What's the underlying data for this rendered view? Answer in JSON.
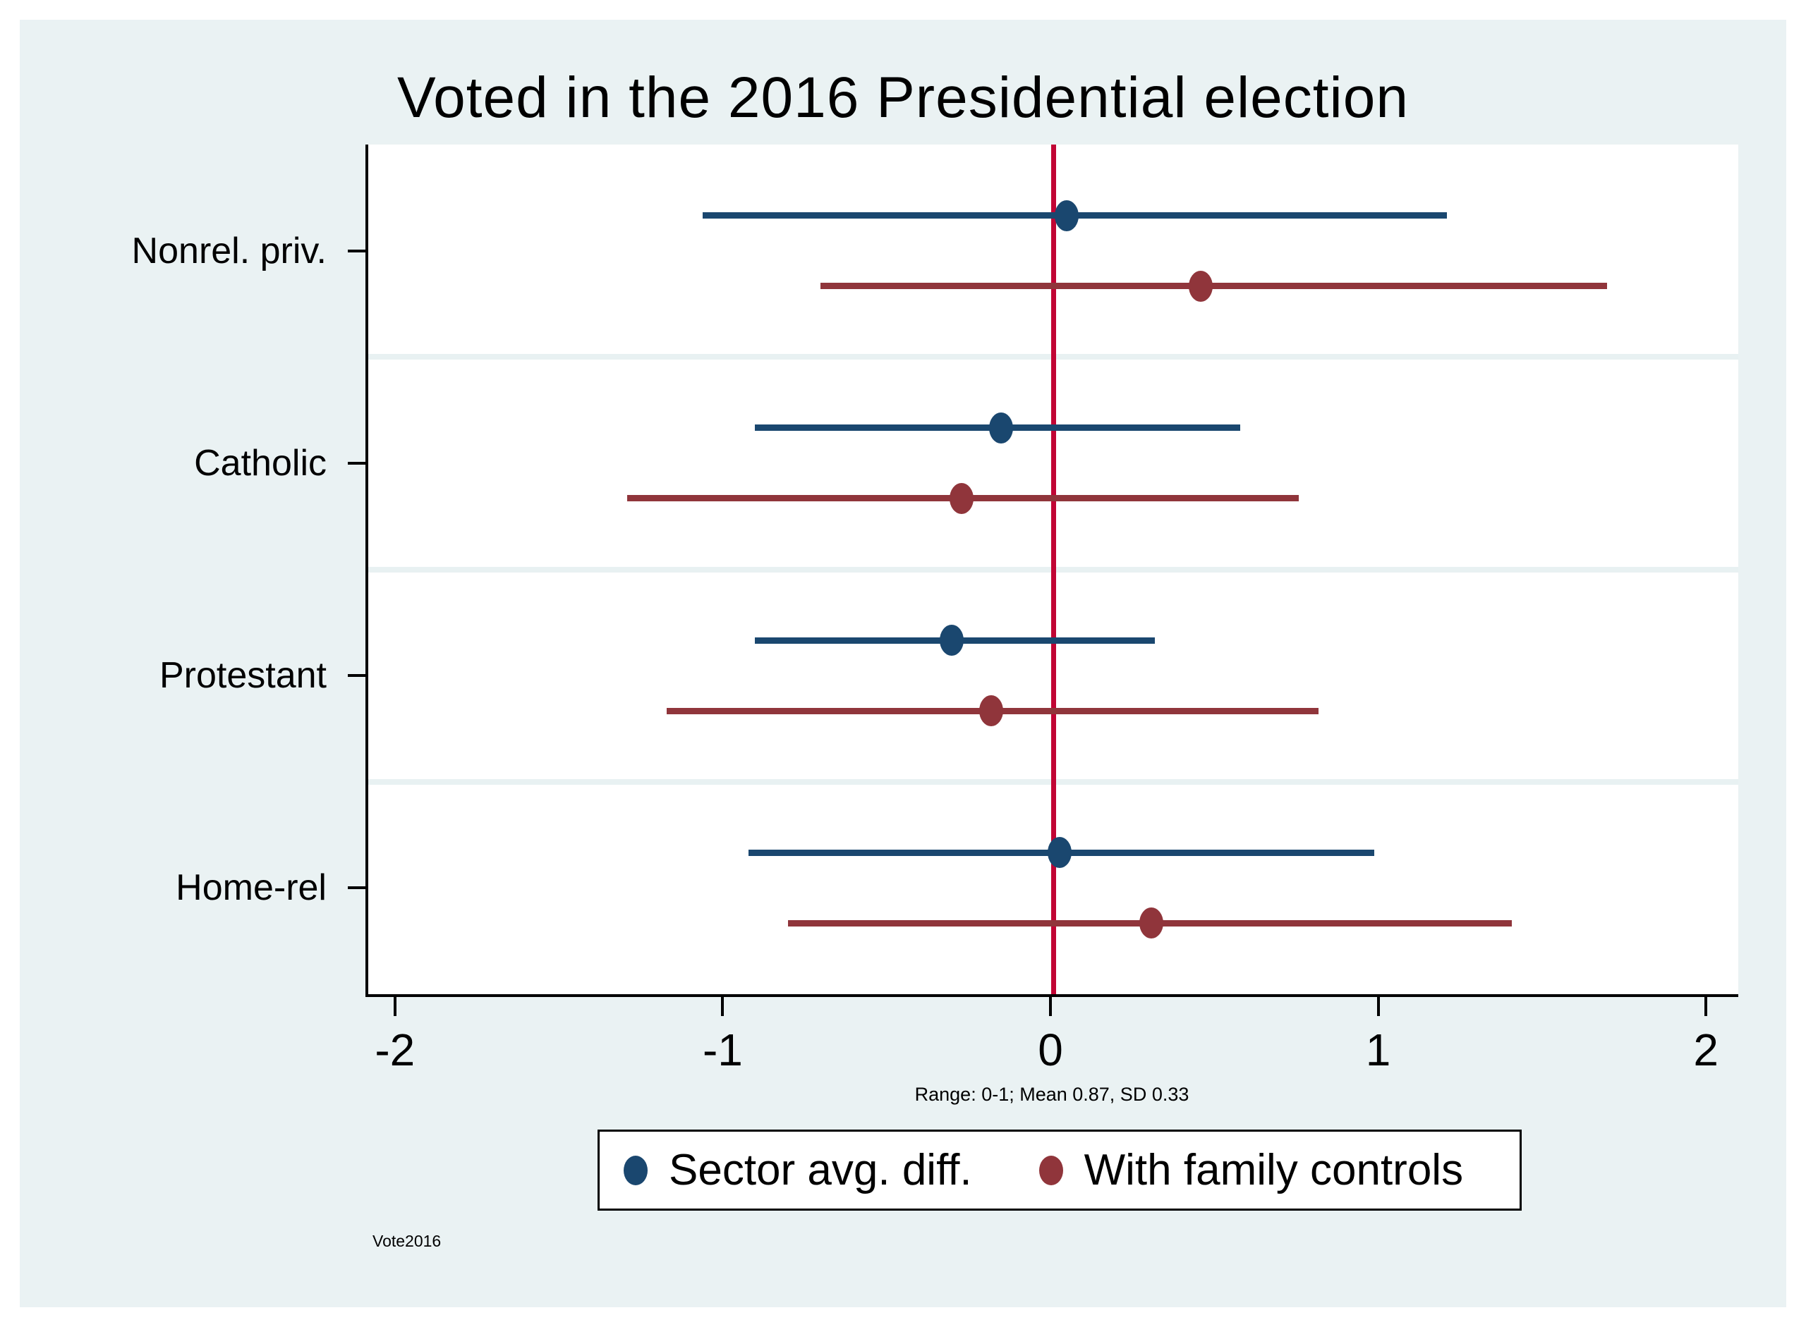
{
  "title": "Voted in the 2016 Presidential election",
  "note": "Range: 0-1; Mean 0.87, SD 0.33",
  "watermark": "Vote2016",
  "colors": {
    "graph_background": "#eaf2f3",
    "plot_background": "#ffffff",
    "axis": "#000000",
    "gridline": "#e8f1f2",
    "zero_line": "#c10534",
    "series_navy": "#1a476f",
    "series_maroon": "#90353b"
  },
  "chart_data": {
    "type": "scatter",
    "subtype": "coefficient-plot-with-confidence-intervals",
    "orientation": "horizontal",
    "title": "Voted in the 2016 Presidential election",
    "xlabel": "",
    "ylabel": "",
    "xlim": [
      -2.09,
      2.09
    ],
    "x_ticks": [
      -2,
      -1,
      0,
      1,
      2
    ],
    "zero_line_x": 0,
    "grid": "category-separators",
    "legend_position": "bottom-center",
    "categories": [
      "Nonrel. priv.",
      "Catholic",
      "Protestant",
      "Home-rel"
    ],
    "series": [
      {
        "name": "Sector avg. diff.",
        "color": "#1a476f",
        "points": [
          {
            "category": "Nonrel. priv.",
            "est": 0.04,
            "lo": -1.07,
            "hi": 1.2
          },
          {
            "category": "Catholic",
            "est": -0.16,
            "lo": -0.91,
            "hi": 0.57
          },
          {
            "category": "Protestant",
            "est": -0.31,
            "lo": -0.91,
            "hi": 0.31
          },
          {
            "category": "Home-rel",
            "est": 0.02,
            "lo": -0.93,
            "hi": 0.98
          }
        ]
      },
      {
        "name": "With family controls",
        "color": "#90353b",
        "points": [
          {
            "category": "Nonrel. priv.",
            "est": 0.45,
            "lo": -0.71,
            "hi": 1.69
          },
          {
            "category": "Catholic",
            "est": -0.28,
            "lo": -1.3,
            "hi": 0.75
          },
          {
            "category": "Protestant",
            "est": -0.19,
            "lo": -1.18,
            "hi": 0.81
          },
          {
            "category": "Home-rel",
            "est": 0.3,
            "lo": -0.81,
            "hi": 1.4
          }
        ]
      }
    ]
  }
}
